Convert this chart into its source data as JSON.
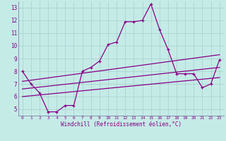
{
  "xlabel": "Windchill (Refroidissement éolien,°C)",
  "bg_color": "#c5ebe7",
  "grid_color": "#aad4d0",
  "line_color": "#880088",
  "spine_color": "#7070a0",
  "xlim": [
    -0.5,
    23.5
  ],
  "ylim": [
    4.5,
    13.5
  ],
  "yticks": [
    5,
    6,
    7,
    8,
    9,
    10,
    11,
    12,
    13
  ],
  "xticks": [
    0,
    1,
    2,
    3,
    4,
    5,
    6,
    7,
    8,
    9,
    10,
    11,
    12,
    13,
    14,
    15,
    16,
    17,
    18,
    19,
    20,
    21,
    22,
    23
  ],
  "line1_x": [
    0,
    1,
    2,
    3,
    4,
    5,
    6,
    7,
    8,
    9,
    10,
    11,
    12,
    13,
    14,
    15,
    16,
    17,
    18,
    19,
    20,
    21,
    22,
    23
  ],
  "line1_y": [
    8.0,
    7.0,
    6.3,
    4.8,
    4.8,
    5.3,
    5.3,
    8.0,
    8.3,
    8.8,
    10.1,
    10.3,
    11.9,
    11.9,
    12.0,
    13.3,
    11.3,
    9.7,
    7.8,
    7.8,
    7.8,
    6.7,
    7.0,
    8.9
  ],
  "line2_x": [
    0,
    23
  ],
  "line2_y": [
    7.2,
    9.3
  ],
  "line3_x": [
    0,
    23
  ],
  "line3_y": [
    6.6,
    8.3
  ],
  "line4_x": [
    0,
    23
  ],
  "line4_y": [
    6.0,
    7.5
  ]
}
